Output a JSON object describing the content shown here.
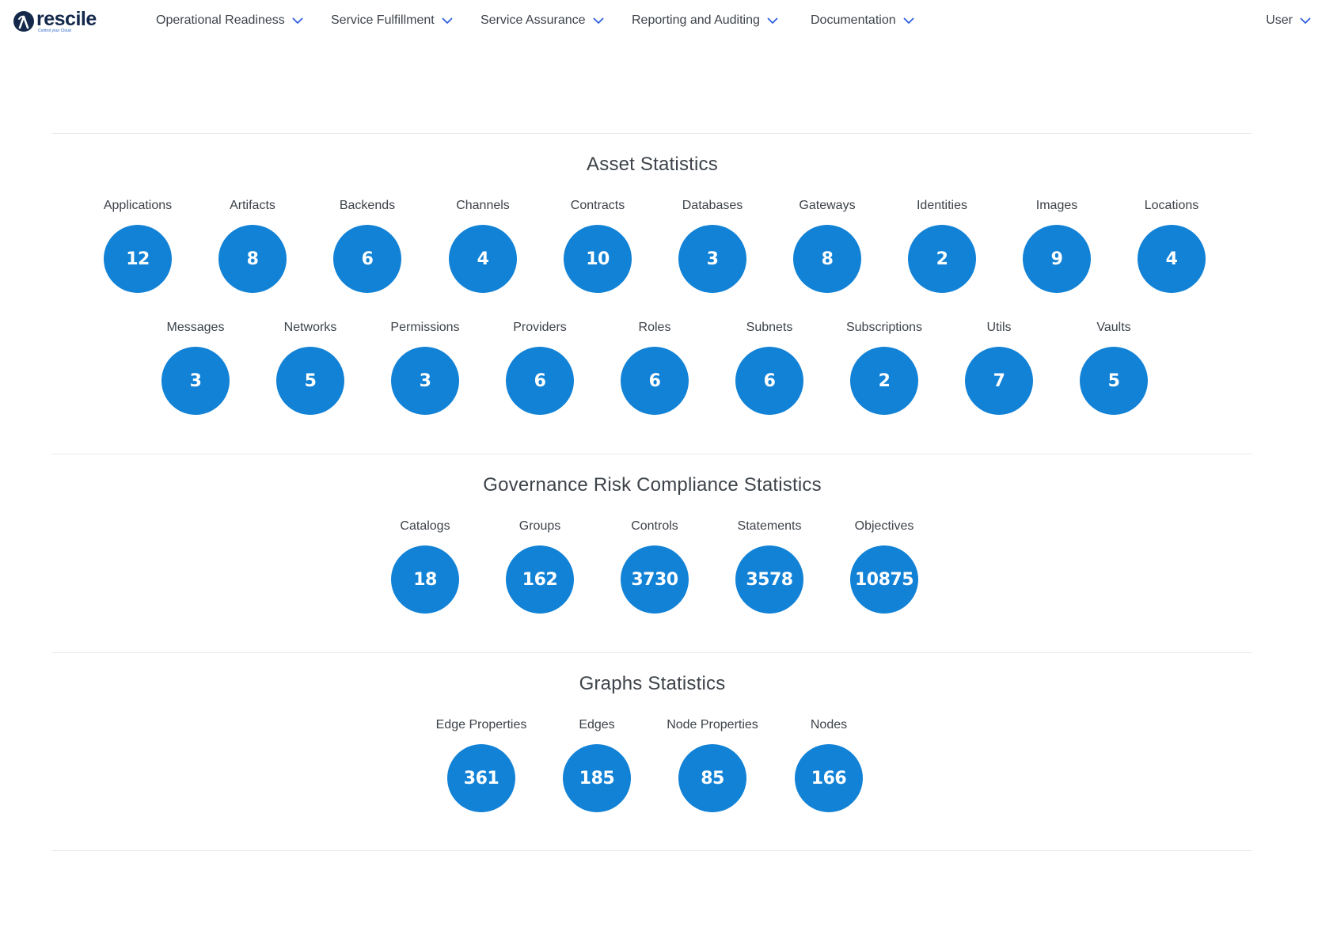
{
  "brand": {
    "name": "rescile",
    "tagline": "Control your Cloud"
  },
  "nav": {
    "items": [
      {
        "label": "Operational Readiness"
      },
      {
        "label": "Service Fulfillment"
      },
      {
        "label": "Service Assurance"
      },
      {
        "label": "Reporting and Auditing"
      },
      {
        "label": "Documentation"
      }
    ],
    "user": {
      "label": "User"
    }
  },
  "theme": {
    "accent": "#1282d6",
    "brand": "#13284b",
    "chevron": "#2f5fe0"
  },
  "sections": {
    "asset": {
      "title": "Asset Statistics",
      "row1": [
        {
          "label": "Applications",
          "value": "12"
        },
        {
          "label": "Artifacts",
          "value": "8"
        },
        {
          "label": "Backends",
          "value": "6"
        },
        {
          "label": "Channels",
          "value": "4"
        },
        {
          "label": "Contracts",
          "value": "10"
        },
        {
          "label": "Databases",
          "value": "3"
        },
        {
          "label": "Gateways",
          "value": "8"
        },
        {
          "label": "Identities",
          "value": "2"
        },
        {
          "label": "Images",
          "value": "9"
        },
        {
          "label": "Locations",
          "value": "4"
        }
      ],
      "row2": [
        {
          "label": "Messages",
          "value": "3"
        },
        {
          "label": "Networks",
          "value": "5"
        },
        {
          "label": "Permissions",
          "value": "3"
        },
        {
          "label": "Providers",
          "value": "6"
        },
        {
          "label": "Roles",
          "value": "6"
        },
        {
          "label": "Subnets",
          "value": "6"
        },
        {
          "label": "Subscriptions",
          "value": "2"
        },
        {
          "label": "Utils",
          "value": "7"
        },
        {
          "label": "Vaults",
          "value": "5"
        }
      ]
    },
    "grc": {
      "title": "Governance Risk Compliance Statistics",
      "items": [
        {
          "label": "Catalogs",
          "value": "18"
        },
        {
          "label": "Groups",
          "value": "162"
        },
        {
          "label": "Controls",
          "value": "3730"
        },
        {
          "label": "Statements",
          "value": "3578"
        },
        {
          "label": "Objectives",
          "value": "10875"
        }
      ]
    },
    "graphs": {
      "title": "Graphs Statistics",
      "items": [
        {
          "label": "Edge Properties",
          "value": "361"
        },
        {
          "label": "Edges",
          "value": "185"
        },
        {
          "label": "Node Properties",
          "value": "85"
        },
        {
          "label": "Nodes",
          "value": "166"
        }
      ]
    }
  }
}
